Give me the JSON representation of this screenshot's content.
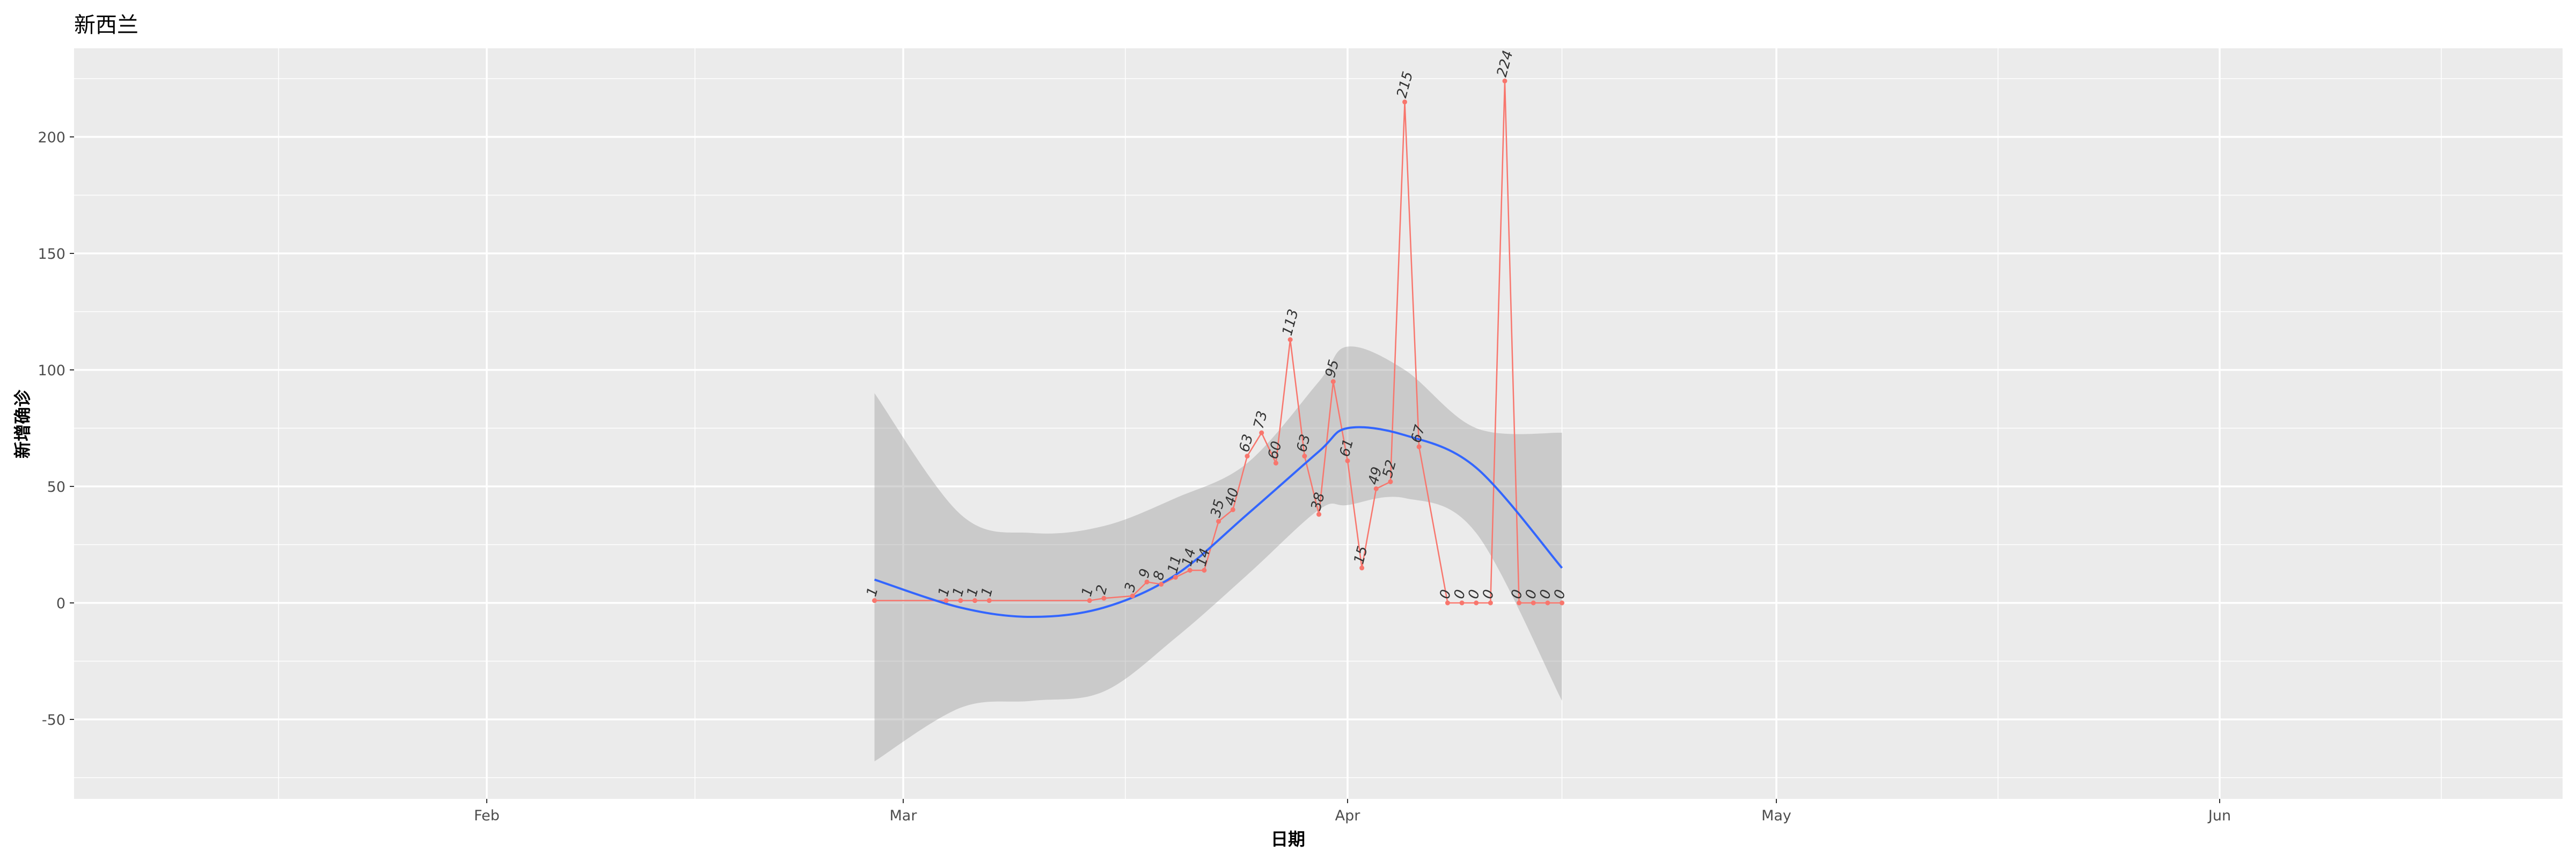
{
  "chart_data": {
    "type": "line",
    "title": "新西兰",
    "xlabel": "日期",
    "ylabel": "新增确诊",
    "x_ticks": [
      "Feb",
      "Mar",
      "Apr",
      "May",
      "Jun"
    ],
    "y_ticks": [
      -50,
      0,
      50,
      100,
      150,
      200
    ],
    "ylim": [
      -85,
      240
    ],
    "grid": true,
    "series": [
      {
        "x": [
          "2020-02-28",
          "2020-03-04",
          "2020-03-05",
          "2020-03-06",
          "2020-03-07",
          "2020-03-14",
          "2020-03-15",
          "2020-03-17",
          "2020-03-18",
          "2020-03-19",
          "2020-03-20",
          "2020-03-21",
          "2020-03-22",
          "2020-03-23",
          "2020-03-24",
          "2020-03-25",
          "2020-03-26",
          "2020-03-27",
          "2020-03-28",
          "2020-03-29",
          "2020-03-30",
          "2020-03-31",
          "2020-04-01",
          "2020-04-02",
          "2020-04-03",
          "2020-04-04",
          "2020-04-05",
          "2020-04-06",
          "2020-04-08",
          "2020-04-09",
          "2020-04-10",
          "2020-04-11",
          "2020-04-12",
          "2020-04-13",
          "2020-04-14",
          "2020-04-15",
          "2020-04-16"
        ],
        "values": [
          1,
          1,
          1,
          1,
          1,
          1,
          2,
          3,
          9,
          8,
          11,
          14,
          14,
          35,
          40,
          63,
          73,
          60,
          113,
          63,
          38,
          95,
          61,
          15,
          49,
          52,
          215,
          67,
          0,
          0,
          0,
          0,
          224,
          0,
          0,
          0,
          0
        ]
      }
    ],
    "smooth": {
      "x": [
        "2020-02-28",
        "2020-03-05",
        "2020-03-10",
        "2020-03-15",
        "2020-03-20",
        "2020-03-25",
        "2020-03-30",
        "2020-04-01",
        "2020-04-05",
        "2020-04-10",
        "2020-04-16"
      ],
      "values": [
        10,
        -2,
        -6,
        -2,
        12,
        38,
        65,
        75,
        72,
        58,
        15
      ],
      "lower": [
        -68,
        -45,
        -42,
        -38,
        -15,
        12,
        40,
        42,
        45,
        30,
        -42
      ],
      "upper": [
        90,
        38,
        30,
        33,
        45,
        60,
        95,
        110,
        100,
        75,
        73
      ]
    }
  },
  "colors": {
    "panel": "#ebebeb",
    "grid": "#ffffff",
    "line": "#f8766d",
    "smooth": "#3366ff",
    "ribbon": "#999999"
  }
}
